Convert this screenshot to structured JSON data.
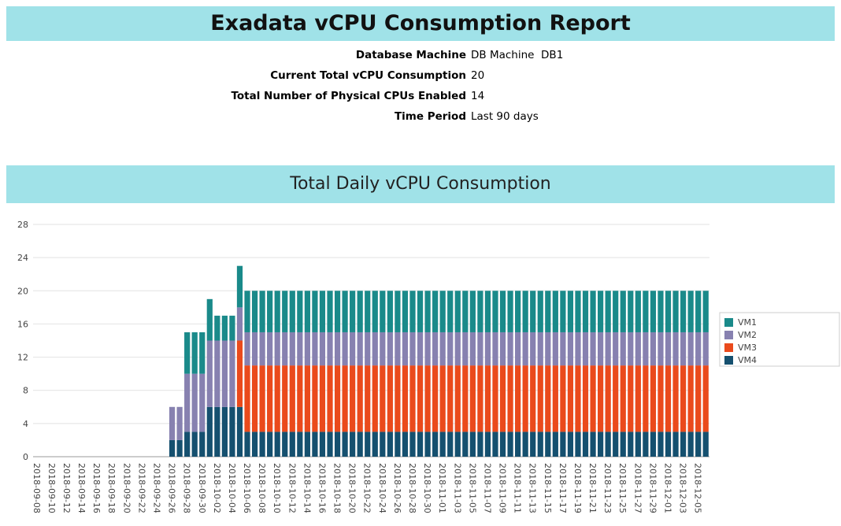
{
  "header": {
    "title": "Exadata vCPU Consumption Report",
    "fields": [
      {
        "label": "Database Machine",
        "value": "DB Machine  DB1"
      },
      {
        "label": "Current Total vCPU Consumption",
        "value": "20"
      },
      {
        "label": "Total Number of Physical CPUs Enabled",
        "value": "14"
      },
      {
        "label": "Time Period",
        "value": "Last 90 days"
      }
    ]
  },
  "chart_data": {
    "type": "stacked_bar",
    "title": "Total Daily vCPU Consumption",
    "categories": [
      "2018-09-08",
      null,
      "2018-09-10",
      null,
      "2018-09-12",
      null,
      "2018-09-14",
      null,
      "2018-09-16",
      null,
      "2018-09-18",
      null,
      "2018-09-20",
      null,
      "2018-09-22",
      null,
      "2018-09-24",
      null,
      "2018-09-26",
      null,
      "2018-09-28",
      null,
      "2018-09-30",
      null,
      "2018-10-02",
      null,
      "2018-10-04",
      null,
      "2018-10-06",
      null,
      "2018-10-08",
      null,
      "2018-10-10",
      null,
      "2018-10-12",
      null,
      "2018-10-14",
      null,
      "2018-10-16",
      null,
      "2018-10-18",
      null,
      "2018-10-20",
      null,
      "2018-10-22",
      null,
      "2018-10-24",
      null,
      "2018-10-26",
      null,
      "2018-10-28",
      null,
      "2018-10-30",
      null,
      "2018-11-01",
      null,
      "2018-11-03",
      null,
      "2018-11-05",
      null,
      "2018-11-07",
      null,
      "2018-11-09",
      null,
      "2018-11-11",
      null,
      "2018-11-13",
      null,
      "2018-11-15",
      null,
      "2018-11-17",
      null,
      "2018-11-19",
      null,
      "2018-11-21",
      null,
      "2018-11-23",
      null,
      "2018-11-25",
      null,
      "2018-11-27",
      null,
      "2018-11-29",
      null,
      "2018-12-01",
      null,
      "2018-12-03",
      null,
      "2018-12-05",
      null
    ],
    "series": [
      {
        "name": "VM1",
        "color": "#1a8a8a",
        "values": [
          0,
          0,
          0,
          0,
          0,
          0,
          0,
          0,
          0,
          0,
          0,
          0,
          0,
          0,
          0,
          0,
          0,
          0,
          0,
          0,
          5,
          5,
          5,
          5,
          3,
          3,
          3,
          5,
          5,
          5,
          5,
          5,
          5,
          5,
          5,
          5,
          5,
          5,
          5,
          5,
          5,
          5,
          5,
          5,
          5,
          5,
          5,
          5,
          5,
          5,
          5,
          5,
          5,
          5,
          5,
          5,
          5,
          5,
          5,
          5,
          5,
          5,
          5,
          5,
          5,
          5,
          5,
          5,
          5,
          5,
          5,
          5,
          5,
          5,
          5,
          5,
          5,
          5,
          5,
          5,
          5,
          5,
          5,
          5,
          5,
          5,
          5,
          5,
          5,
          5
        ]
      },
      {
        "name": "VM2",
        "color": "#8781b0",
        "values": [
          0,
          0,
          0,
          0,
          0,
          0,
          0,
          0,
          0,
          0,
          0,
          0,
          0,
          0,
          0,
          0,
          0,
          0,
          4,
          4,
          7,
          7,
          7,
          8,
          8,
          8,
          8,
          4,
          4,
          4,
          4,
          4,
          4,
          4,
          4,
          4,
          4,
          4,
          4,
          4,
          4,
          4,
          4,
          4,
          4,
          4,
          4,
          4,
          4,
          4,
          4,
          4,
          4,
          4,
          4,
          4,
          4,
          4,
          4,
          4,
          4,
          4,
          4,
          4,
          4,
          4,
          4,
          4,
          4,
          4,
          4,
          4,
          4,
          4,
          4,
          4,
          4,
          4,
          4,
          4,
          4,
          4,
          4,
          4,
          4,
          4,
          4,
          4,
          4,
          4
        ]
      },
      {
        "name": "VM3",
        "color": "#ea4a1c",
        "values": [
          0,
          0,
          0,
          0,
          0,
          0,
          0,
          0,
          0,
          0,
          0,
          0,
          0,
          0,
          0,
          0,
          0,
          0,
          0,
          0,
          0,
          0,
          0,
          0,
          0,
          0,
          0,
          8,
          8,
          8,
          8,
          8,
          8,
          8,
          8,
          8,
          8,
          8,
          8,
          8,
          8,
          8,
          8,
          8,
          8,
          8,
          8,
          8,
          8,
          8,
          8,
          8,
          8,
          8,
          8,
          8,
          8,
          8,
          8,
          8,
          8,
          8,
          8,
          8,
          8,
          8,
          8,
          8,
          8,
          8,
          8,
          8,
          8,
          8,
          8,
          8,
          8,
          8,
          8,
          8,
          8,
          8,
          8,
          8,
          8,
          8,
          8,
          8,
          8,
          8
        ]
      },
      {
        "name": "VM4",
        "color": "#15506f",
        "values": [
          0,
          0,
          0,
          0,
          0,
          0,
          0,
          0,
          0,
          0,
          0,
          0,
          0,
          0,
          0,
          0,
          0,
          0,
          2,
          2,
          3,
          3,
          3,
          6,
          6,
          6,
          6,
          6,
          3,
          3,
          3,
          3,
          3,
          3,
          3,
          3,
          3,
          3,
          3,
          3,
          3,
          3,
          3,
          3,
          3,
          3,
          3,
          3,
          3,
          3,
          3,
          3,
          3,
          3,
          3,
          3,
          3,
          3,
          3,
          3,
          3,
          3,
          3,
          3,
          3,
          3,
          3,
          3,
          3,
          3,
          3,
          3,
          3,
          3,
          3,
          3,
          3,
          3,
          3,
          3,
          3,
          3,
          3,
          3,
          3,
          3,
          3,
          3,
          3,
          3
        ]
      }
    ],
    "ylim": [
      0,
      28
    ],
    "yticks": [
      0,
      4,
      8,
      12,
      16,
      20,
      24,
      28
    ],
    "grid": true,
    "legend": "right"
  }
}
